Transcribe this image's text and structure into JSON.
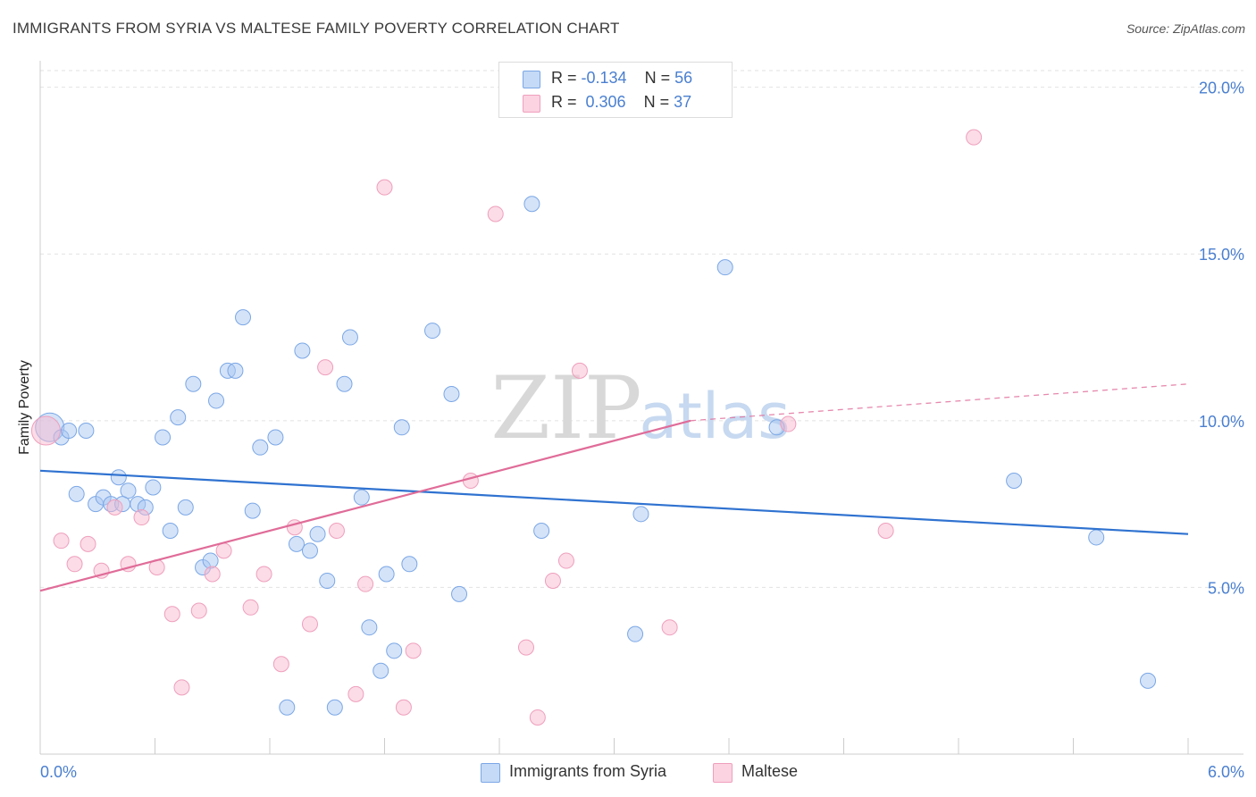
{
  "header": {
    "title": "IMMIGRANTS FROM SYRIA VS MALTESE FAMILY POVERTY CORRELATION CHART",
    "source": "Source: ZipAtlas.com"
  },
  "watermark": {
    "zip": "ZIP",
    "atlas": "atlas"
  },
  "stats": [
    {
      "r_label": "R = ",
      "r_value": "-0.134",
      "n_label": "N = ",
      "n_value": "56",
      "color": "#a9c8f2"
    },
    {
      "r_label": "R = ",
      "r_value": " 0.306",
      "n_label": "N = ",
      "n_value": "37",
      "color": "#f7b9cf"
    }
  ],
  "legend": [
    {
      "label": "Immigrants from Syria",
      "color": "#a9c8f2"
    },
    {
      "label": "Maltese",
      "color": "#f7b9cf"
    }
  ],
  "chart_data": {
    "type": "scatter",
    "title": "IMMIGRANTS FROM SYRIA VS MALTESE FAMILY POVERTY CORRELATION CHART",
    "xlabel": "",
    "ylabel": "Family Poverty",
    "xlim": [
      0.0,
      6.0
    ],
    "ylim": [
      0.0,
      20.5
    ],
    "x_tick_labels": [
      "0.0%",
      "6.0%"
    ],
    "y_ticks": [
      5.0,
      10.0,
      15.0,
      20.0
    ],
    "y_tick_labels": [
      "5.0%",
      "10.0%",
      "15.0%",
      "20.0%"
    ],
    "grid": true,
    "legend_position": "bottom-center",
    "series": [
      {
        "name": "Immigrants from Syria",
        "color": "#7ba7e6",
        "fill": "#a9c8f2",
        "trend_color": "#2f72d0",
        "trend": {
          "x": [
            0.0,
            6.0
          ],
          "y": [
            8.5,
            6.6
          ]
        },
        "points": [
          {
            "x": 0.05,
            "y": 9.8,
            "size": "large"
          },
          {
            "x": 0.11,
            "y": 9.5
          },
          {
            "x": 0.15,
            "y": 9.7
          },
          {
            "x": 0.24,
            "y": 9.7
          },
          {
            "x": 0.19,
            "y": 7.8
          },
          {
            "x": 0.29,
            "y": 7.5
          },
          {
            "x": 0.33,
            "y": 7.7
          },
          {
            "x": 0.37,
            "y": 7.5
          },
          {
            "x": 0.41,
            "y": 8.3
          },
          {
            "x": 0.46,
            "y": 7.9
          },
          {
            "x": 0.51,
            "y": 7.5
          },
          {
            "x": 0.55,
            "y": 7.4
          },
          {
            "x": 0.59,
            "y": 8.0
          },
          {
            "x": 0.64,
            "y": 9.5
          },
          {
            "x": 0.68,
            "y": 6.7
          },
          {
            "x": 0.72,
            "y": 10.1
          },
          {
            "x": 0.76,
            "y": 7.4
          },
          {
            "x": 0.8,
            "y": 11.1
          },
          {
            "x": 0.85,
            "y": 5.6
          },
          {
            "x": 0.89,
            "y": 5.8
          },
          {
            "x": 0.92,
            "y": 10.6
          },
          {
            "x": 0.98,
            "y": 11.5
          },
          {
            "x": 1.02,
            "y": 11.5
          },
          {
            "x": 1.06,
            "y": 13.1
          },
          {
            "x": 1.11,
            "y": 7.3
          },
          {
            "x": 1.15,
            "y": 9.2
          },
          {
            "x": 1.23,
            "y": 9.5
          },
          {
            "x": 1.34,
            "y": 6.3
          },
          {
            "x": 1.37,
            "y": 12.1
          },
          {
            "x": 1.41,
            "y": 6.1
          },
          {
            "x": 1.45,
            "y": 6.6
          },
          {
            "x": 1.5,
            "y": 5.2
          },
          {
            "x": 1.54,
            "y": 1.4
          },
          {
            "x": 1.59,
            "y": 11.1
          },
          {
            "x": 1.62,
            "y": 12.5
          },
          {
            "x": 1.68,
            "y": 7.7
          },
          {
            "x": 1.72,
            "y": 3.8
          },
          {
            "x": 1.78,
            "y": 2.5
          },
          {
            "x": 1.81,
            "y": 5.4
          },
          {
            "x": 1.85,
            "y": 3.1
          },
          {
            "x": 1.89,
            "y": 9.8
          },
          {
            "x": 1.93,
            "y": 5.7
          },
          {
            "x": 2.05,
            "y": 12.7
          },
          {
            "x": 2.15,
            "y": 10.8
          },
          {
            "x": 2.19,
            "y": 4.8
          },
          {
            "x": 1.29,
            "y": 1.4
          },
          {
            "x": 2.57,
            "y": 16.5
          },
          {
            "x": 2.62,
            "y": 6.7
          },
          {
            "x": 3.11,
            "y": 3.6
          },
          {
            "x": 3.14,
            "y": 7.2
          },
          {
            "x": 3.58,
            "y": 14.6
          },
          {
            "x": 3.85,
            "y": 9.8
          },
          {
            "x": 5.09,
            "y": 8.2
          },
          {
            "x": 5.52,
            "y": 6.5
          },
          {
            "x": 5.79,
            "y": 2.2
          },
          {
            "x": 0.43,
            "y": 7.5
          }
        ]
      },
      {
        "name": "Maltese",
        "color": "#ef9fbc",
        "fill": "#f7b9cf",
        "trend_color": "#e06c98",
        "trend": {
          "x": [
            0.0,
            3.4
          ],
          "y": [
            4.9,
            10.0
          ]
        },
        "trend_dashed": {
          "x": [
            3.4,
            6.0
          ],
          "y": [
            10.0,
            11.1
          ]
        },
        "points": [
          {
            "x": 0.03,
            "y": 9.7,
            "size": "large"
          },
          {
            "x": 0.11,
            "y": 6.4
          },
          {
            "x": 0.18,
            "y": 5.7
          },
          {
            "x": 0.25,
            "y": 6.3
          },
          {
            "x": 0.32,
            "y": 5.5
          },
          {
            "x": 0.39,
            "y": 7.4
          },
          {
            "x": 0.46,
            "y": 5.7
          },
          {
            "x": 0.53,
            "y": 7.1
          },
          {
            "x": 0.61,
            "y": 5.6
          },
          {
            "x": 0.69,
            "y": 4.2
          },
          {
            "x": 0.74,
            "y": 2.0
          },
          {
            "x": 0.83,
            "y": 4.3
          },
          {
            "x": 0.9,
            "y": 5.4
          },
          {
            "x": 0.96,
            "y": 6.1
          },
          {
            "x": 1.1,
            "y": 4.4
          },
          {
            "x": 1.17,
            "y": 5.4
          },
          {
            "x": 1.26,
            "y": 2.7
          },
          {
            "x": 1.33,
            "y": 6.8
          },
          {
            "x": 1.41,
            "y": 3.9
          },
          {
            "x": 1.49,
            "y": 11.6
          },
          {
            "x": 1.55,
            "y": 6.7
          },
          {
            "x": 1.65,
            "y": 1.8
          },
          {
            "x": 1.7,
            "y": 5.1
          },
          {
            "x": 1.8,
            "y": 17.0
          },
          {
            "x": 1.9,
            "y": 1.4
          },
          {
            "x": 1.95,
            "y": 3.1
          },
          {
            "x": 2.25,
            "y": 8.2
          },
          {
            "x": 2.38,
            "y": 16.2
          },
          {
            "x": 2.54,
            "y": 3.2
          },
          {
            "x": 2.6,
            "y": 1.1
          },
          {
            "x": 2.68,
            "y": 5.2
          },
          {
            "x": 2.75,
            "y": 5.8
          },
          {
            "x": 2.82,
            "y": 11.5
          },
          {
            "x": 3.29,
            "y": 3.8
          },
          {
            "x": 3.91,
            "y": 9.9
          },
          {
            "x": 4.42,
            "y": 6.7
          },
          {
            "x": 4.88,
            "y": 18.5
          }
        ]
      }
    ]
  }
}
